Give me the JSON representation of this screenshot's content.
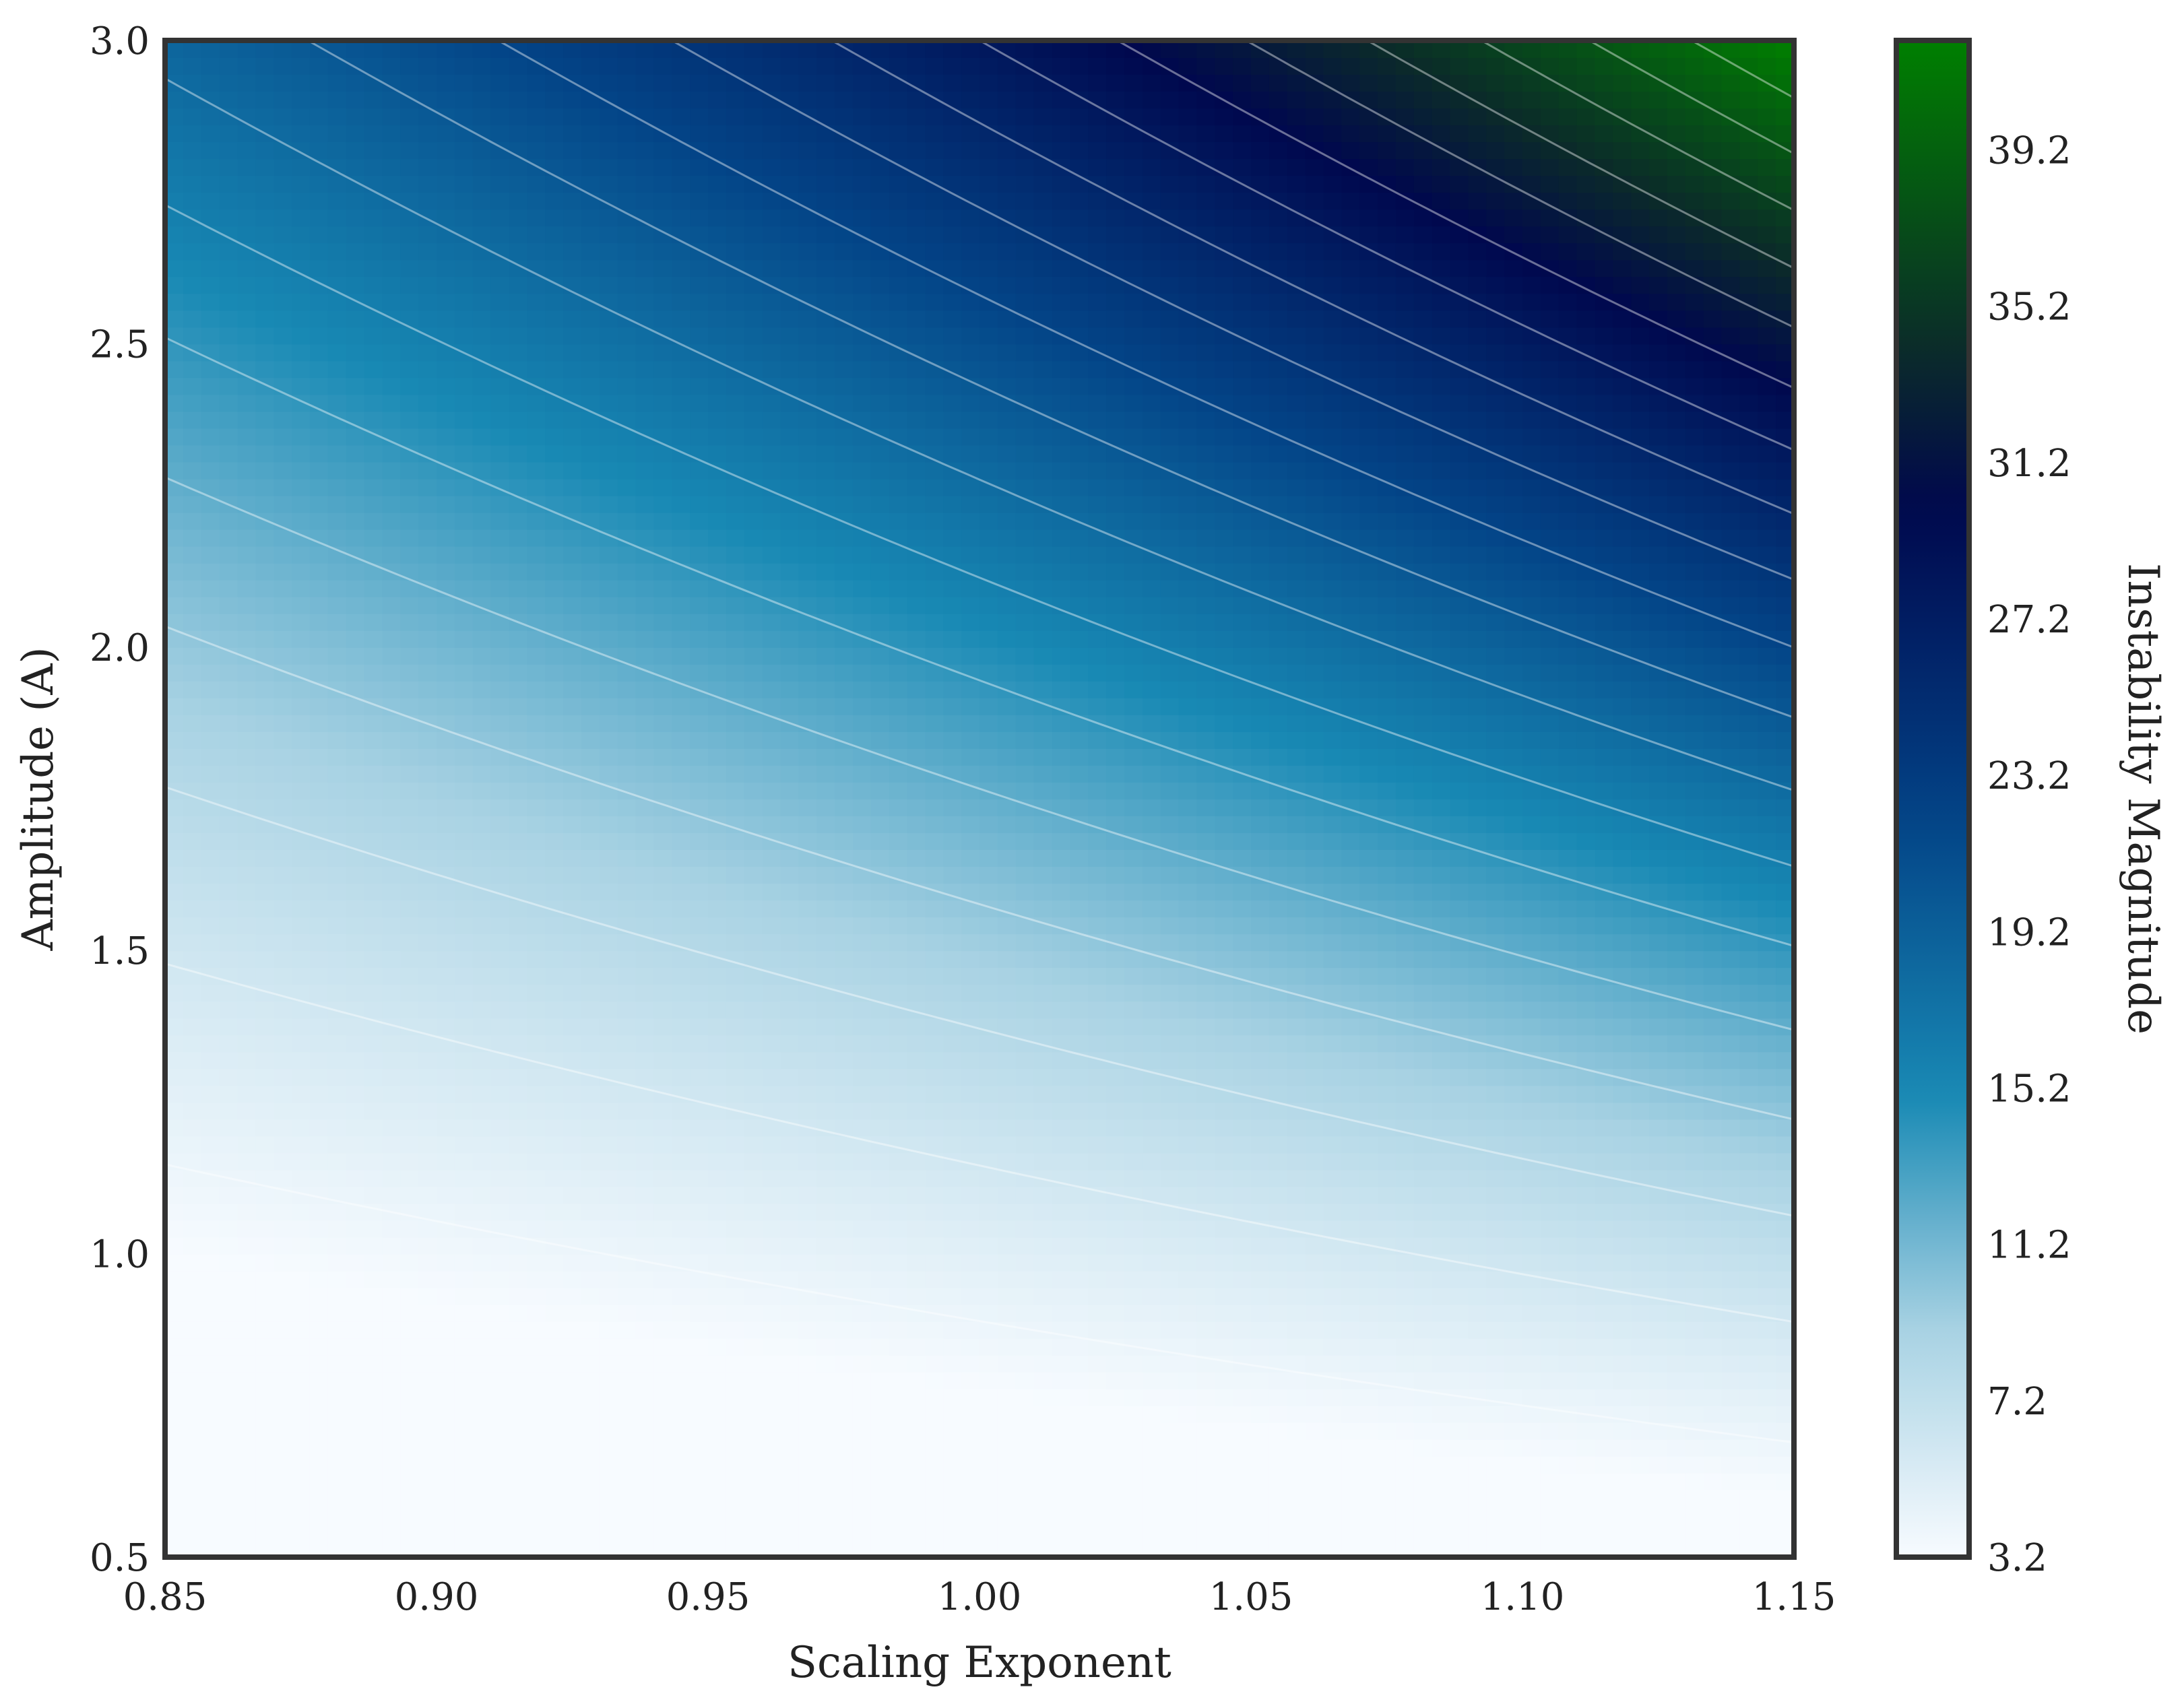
{
  "chart_data": {
    "type": "heatmap",
    "title": "",
    "xlabel": "Scaling Exponent",
    "ylabel": "Amplitude (A)",
    "colorbar_label": "Instability Magnitude",
    "xlim": [
      0.85,
      1.15
    ],
    "ylim": [
      0.5,
      3.0
    ],
    "x_ticks": [
      "0.85",
      "0.90",
      "0.95",
      "1.00",
      "1.05",
      "1.10",
      "1.15"
    ],
    "y_ticks": [
      "0.5",
      "1.0",
      "1.5",
      "2.0",
      "2.5",
      "3.0"
    ],
    "colorbar_ticks": [
      "3.2",
      "7.2",
      "11.2",
      "15.2",
      "19.2",
      "23.2",
      "27.2",
      "31.2",
      "35.2",
      "39.2"
    ],
    "value_range": [
      3.2,
      42.0
    ],
    "corner_values": {
      "x0.85_y0.5": 3.2,
      "x1.15_y0.5": 5.0,
      "x0.85_y3.0": 20.5,
      "x1.00_y3.0": 28.0,
      "x1.15_y3.0": 42.0
    },
    "colormap_stops": [
      {
        "value": 3.2,
        "color": "#f7fbff"
      },
      {
        "value": 9.0,
        "color": "#a8d2e3"
      },
      {
        "value": 15.0,
        "color": "#1889b4"
      },
      {
        "value": 22.0,
        "color": "#034487"
      },
      {
        "value": 30.0,
        "color": "#00084e"
      },
      {
        "value": 34.0,
        "color": "#0b2a2a"
      },
      {
        "value": 42.0,
        "color": "#007f00"
      }
    ],
    "contour_lines": "white, semi-transparent",
    "grid": false
  }
}
